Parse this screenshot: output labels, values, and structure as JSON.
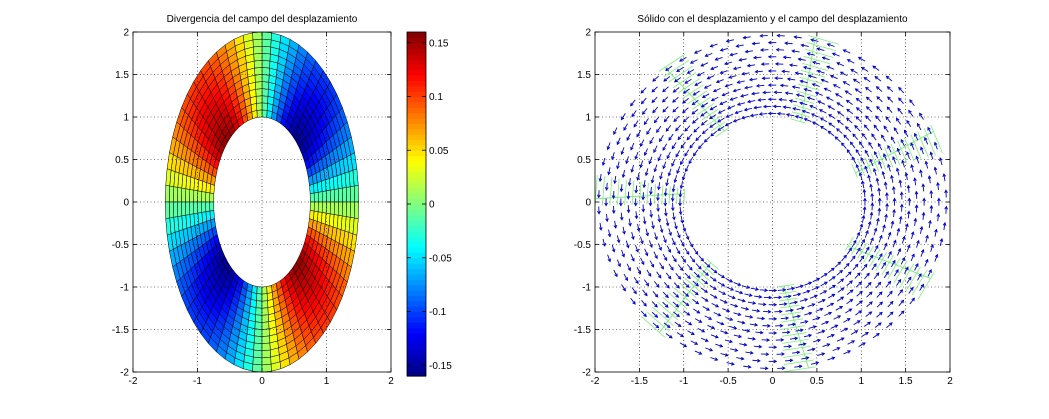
{
  "chart_data": [
    {
      "type": "heatmap",
      "title": "Divergencia del campo del desplazamiento",
      "xlim": [
        -2,
        2
      ],
      "ylim": [
        -2,
        2
      ],
      "x_ticks": [
        -2,
        -1,
        0,
        1,
        2
      ],
      "y_ticks": [
        -2,
        -1.5,
        -1,
        -0.5,
        0,
        0.5,
        1,
        1.5,
        2
      ],
      "y_tick_labels": [
        "-2",
        "-1.5",
        "-1",
        "-0.5",
        "0",
        "0.5",
        "1",
        "1.5",
        "2"
      ],
      "x_tick_labels": [
        "-2",
        "-1",
        "0",
        "1",
        "2"
      ],
      "grid": true,
      "colormap": "jet",
      "clim": [
        -0.16,
        0.16
      ],
      "colorbar_ticks": [
        -0.15,
        -0.1,
        -0.05,
        0,
        0.05,
        0.1,
        0.15
      ],
      "colorbar_tick_labels": [
        "-0.15",
        "-0.1",
        "-0.05",
        "0",
        "0.05",
        "0.1",
        "0.15"
      ],
      "domain": "annulus",
      "inner_radii": [
        0.75,
        1.0
      ],
      "outer_radii": [
        1.5,
        2.0
      ],
      "radial_cells": 12,
      "angular_cells": 64,
      "field": "-0.155 * sin(2*theta)"
    },
    {
      "type": "scatter",
      "title": "Sólido con el desplazamiento y el campo del desplazamiento",
      "xlim": [
        -2,
        2
      ],
      "ylim": [
        -2,
        2
      ],
      "x_ticks": [
        -2,
        -1.5,
        -1,
        -0.5,
        0,
        0.5,
        1,
        1.5,
        2
      ],
      "x_tick_labels": [
        "-2",
        "-1.5",
        "-1",
        "-0.5",
        "0",
        "0.5",
        "1",
        "1.5",
        "2"
      ],
      "y_ticks": [
        -2,
        -1.5,
        -1,
        -0.5,
        0,
        0.5,
        1,
        1.5,
        2
      ],
      "y_tick_labels": [
        "-2",
        "-1.5",
        "-1",
        "-0.5",
        "0",
        "0.5",
        "1",
        "1.5",
        "2"
      ],
      "grid": true,
      "domain": "circular annulus",
      "inner_radius": 1.0,
      "outer_radius": 2.0,
      "mesh_color": "#80ee80",
      "arrow_color": "#0000cc",
      "radial_lines": 7,
      "arrow_rings": 12,
      "arrows_per_ring": 64,
      "field": "counter-clockwise tangential rotation"
    }
  ]
}
